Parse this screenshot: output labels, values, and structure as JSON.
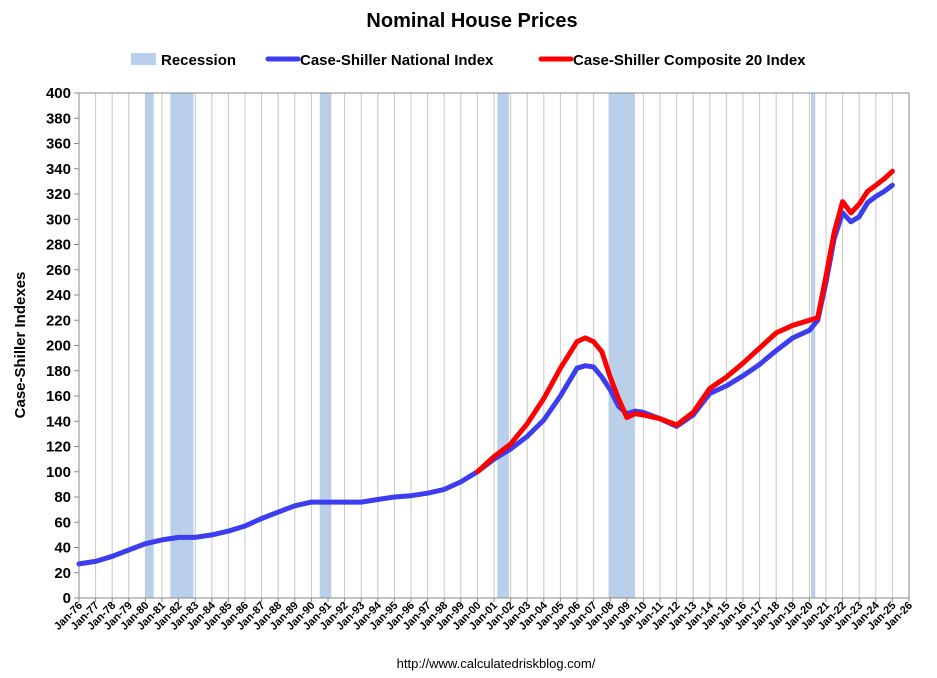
{
  "chart_data": {
    "type": "line",
    "title": "Nominal House Prices",
    "ylabel": "Case-Shiller Indexes",
    "xlabel": "",
    "ylim": [
      0,
      400
    ],
    "yticks": [
      0,
      20,
      40,
      60,
      80,
      100,
      120,
      140,
      160,
      180,
      200,
      220,
      240,
      260,
      280,
      300,
      320,
      340,
      360,
      380,
      400
    ],
    "xlim": [
      1976,
      2026
    ],
    "xtick_labels": [
      "Jan-76",
      "Jan-77",
      "Jan-78",
      "Jan-79",
      "Jan-80",
      "Jan-81",
      "Jan-82",
      "Jan-83",
      "Jan-84",
      "Jan-85",
      "Jan-86",
      "Jan-87",
      "Jan-88",
      "Jan-89",
      "Jan-90",
      "Jan-91",
      "Jan-92",
      "Jan-93",
      "Jan-94",
      "Jan-95",
      "Jan-96",
      "Jan-97",
      "Jan-98",
      "Jan-99",
      "Jan-00",
      "Jan-01",
      "Jan-02",
      "Jan-03",
      "Jan-04",
      "Jan-05",
      "Jan-06",
      "Jan-07",
      "Jan-08",
      "Jan-09",
      "Jan-10",
      "Jan-11",
      "Jan-12",
      "Jan-13",
      "Jan-14",
      "Jan-15",
      "Jan-16",
      "Jan-17",
      "Jan-18",
      "Jan-19",
      "Jan-20",
      "Jan-21",
      "Jan-22",
      "Jan-23",
      "Jan-24",
      "Jan-25",
      "Jan-26"
    ],
    "grid": "vertical",
    "legend_position": "top",
    "legend": [
      {
        "label": "Recession",
        "color": "#b8d0ec",
        "kind": "band"
      },
      {
        "label": "Case-Shiller National Index",
        "color": "#3c3cf0",
        "kind": "line"
      },
      {
        "label": "Case-Shiller Composite 20 Index",
        "color": "#ff0000",
        "kind": "line"
      }
    ],
    "recessions": [
      {
        "start": 1980.0,
        "end": 1980.5
      },
      {
        "start": 1981.5,
        "end": 1982.9
      },
      {
        "start": 1990.5,
        "end": 1991.2
      },
      {
        "start": 2001.2,
        "end": 2001.9
      },
      {
        "start": 2007.9,
        "end": 2009.5
      },
      {
        "start": 2020.1,
        "end": 2020.35
      }
    ],
    "series": [
      {
        "name": "Case-Shiller National Index",
        "color": "#3c3cf0",
        "x": [
          1976,
          1977,
          1978,
          1979,
          1980,
          1981,
          1982,
          1983,
          1984,
          1985,
          1986,
          1987,
          1988,
          1989,
          1990,
          1991,
          1992,
          1993,
          1994,
          1995,
          1996,
          1997,
          1998,
          1999,
          2000,
          2001,
          2002,
          2003,
          2004,
          2005,
          2006,
          2006.5,
          2007,
          2007.5,
          2008,
          2008.5,
          2009,
          2009.5,
          2010,
          2011,
          2012,
          2013,
          2014,
          2015,
          2016,
          2017,
          2018,
          2019,
          2020,
          2020.5,
          2021,
          2021.5,
          2022,
          2022.5,
          2023,
          2023.5,
          2024,
          2024.5,
          2025
        ],
        "values": [
          27,
          29,
          33,
          38,
          43,
          46,
          48,
          48,
          50,
          53,
          57,
          63,
          68,
          73,
          76,
          76,
          76,
          76,
          78,
          80,
          81,
          83,
          86,
          92,
          100,
          110,
          118,
          128,
          141,
          160,
          182,
          184,
          183,
          175,
          165,
          152,
          146,
          148,
          147,
          142,
          136,
          145,
          162,
          168,
          176,
          185,
          196,
          206,
          212,
          220,
          250,
          285,
          305,
          298,
          302,
          313,
          318,
          322,
          327
        ]
      },
      {
        "name": "Case-Shiller Composite 20 Index",
        "color": "#ff0000",
        "x": [
          2000,
          2001,
          2002,
          2003,
          2004,
          2005,
          2006,
          2006.5,
          2007,
          2007.5,
          2008,
          2008.5,
          2009,
          2009.5,
          2010,
          2011,
          2012,
          2013,
          2014,
          2015,
          2016,
          2017,
          2018,
          2019,
          2020,
          2020.5,
          2021,
          2021.5,
          2022,
          2022.5,
          2023,
          2023.5,
          2024,
          2024.5,
          2025
        ],
        "values": [
          100,
          112,
          122,
          138,
          158,
          182,
          203,
          206,
          203,
          195,
          175,
          158,
          143,
          146,
          145,
          142,
          137,
          147,
          166,
          175,
          186,
          198,
          210,
          216,
          220,
          222,
          255,
          290,
          314,
          305,
          312,
          322,
          327,
          332,
          338
        ]
      }
    ],
    "source_label": "http://www.calculatedriskblog.com/"
  }
}
